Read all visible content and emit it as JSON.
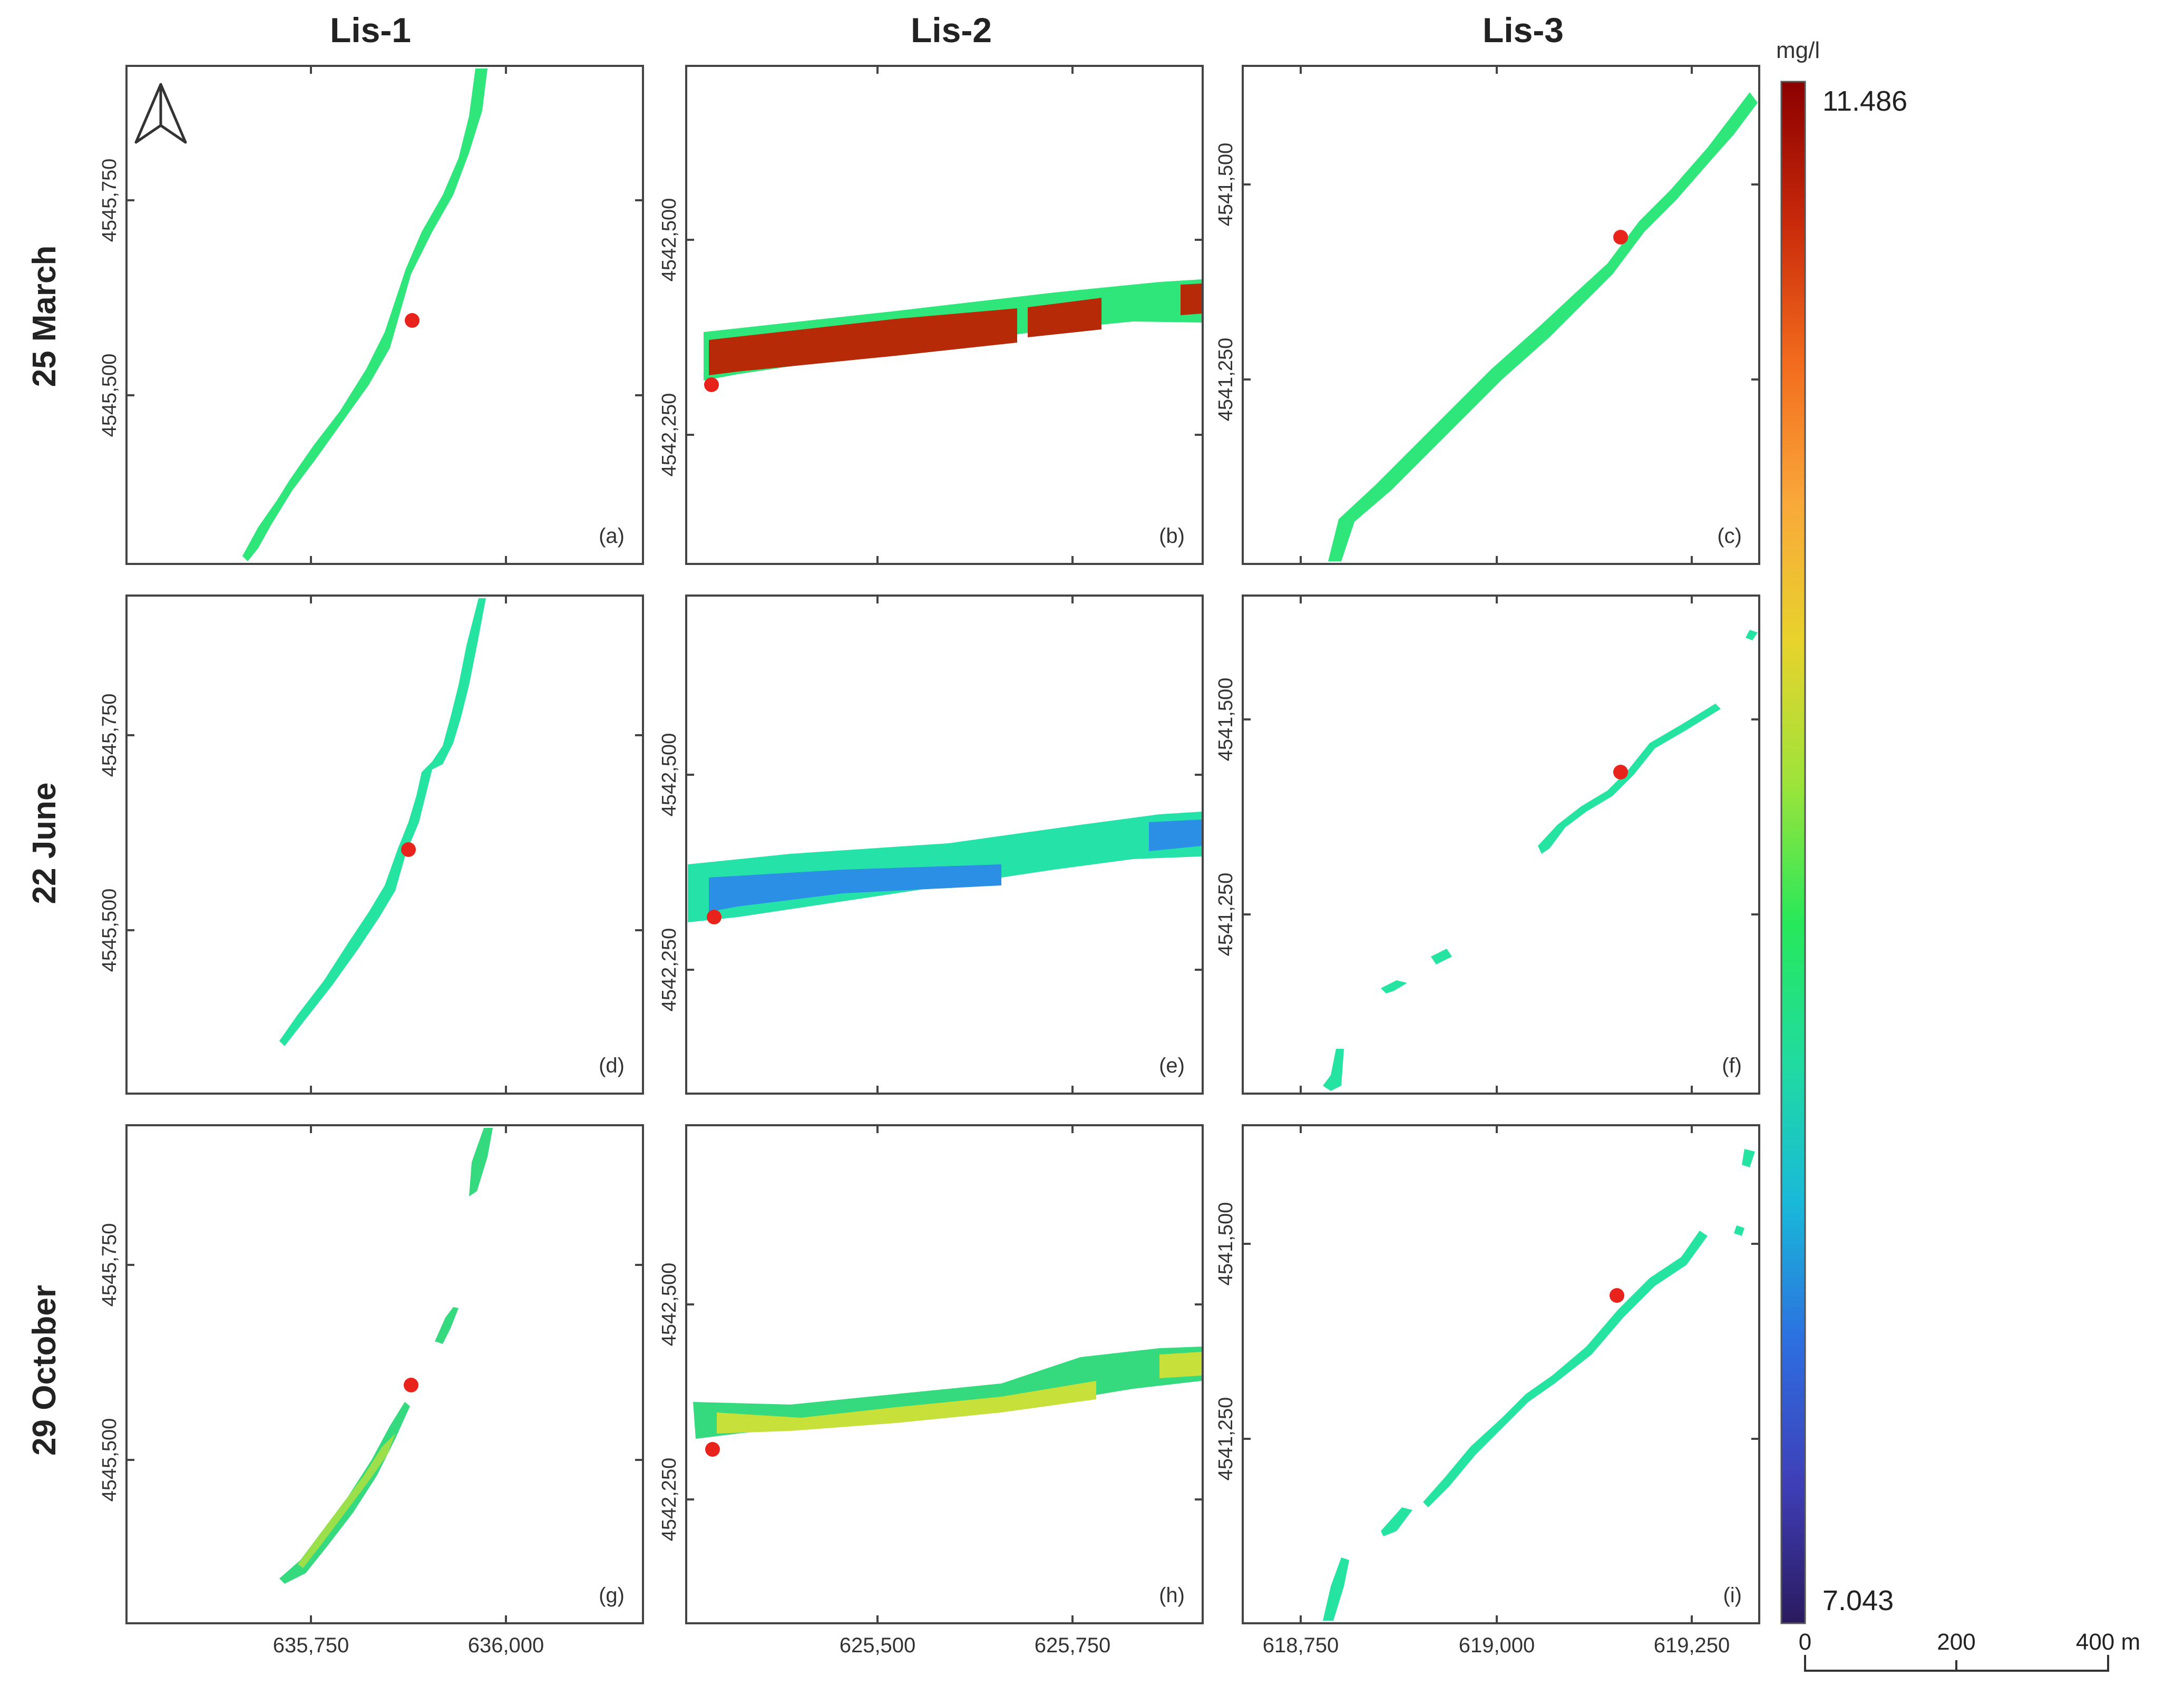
{
  "columns": [
    {
      "label": "Lis-1"
    },
    {
      "label": "Lis-2"
    },
    {
      "label": "Lis-3"
    }
  ],
  "rows": [
    {
      "label": "25 March"
    },
    {
      "label": "22 June"
    },
    {
      "label": "29 October"
    }
  ],
  "panels": [
    {
      "id": "a",
      "label": "(a)",
      "site": "Lis-1",
      "date": "25 March",
      "water_color": "#2ee67a",
      "bg_color": "#2ee67a"
    },
    {
      "id": "b",
      "label": "(b)",
      "site": "Lis-2",
      "date": "25 March",
      "water_color": "#b62a08",
      "bg_color": "#2ee67a"
    },
    {
      "id": "c",
      "label": "(c)",
      "site": "Lis-3",
      "date": "25 March",
      "water_color": "#2ee67a",
      "bg_color": "#2ee67a"
    },
    {
      "id": "d",
      "label": "(d)",
      "site": "Lis-1",
      "date": "22 June",
      "water_color": "#25e3a0",
      "bg_color": "#25e3a0"
    },
    {
      "id": "e",
      "label": "(e)",
      "site": "Lis-2",
      "date": "22 June",
      "water_color": "#2c8fe6",
      "bg_color": "#25e3a8"
    },
    {
      "id": "f",
      "label": "(f)",
      "site": "Lis-3",
      "date": "22 June",
      "water_color": "#25e3a0",
      "bg_color": "#25e3a0"
    },
    {
      "id": "g",
      "label": "(g)",
      "site": "Lis-1",
      "date": "29 October",
      "water_color": "#9be04a",
      "bg_color": "#35d97e"
    },
    {
      "id": "h",
      "label": "(h)",
      "site": "Lis-2",
      "date": "29 October",
      "water_color": "#c8e03a",
      "bg_color": "#35d97e"
    },
    {
      "id": "i",
      "label": "(i)",
      "site": "Lis-3",
      "date": "29 October",
      "water_color": "#25e3a0",
      "bg_color": "#25e3a0"
    }
  ],
  "axes": {
    "lis1": {
      "x_ticks": [
        "635,750",
        "636,000"
      ],
      "y_ticks": [
        "4545,750",
        "4545,500"
      ]
    },
    "lis2": {
      "x_ticks": [
        "625,500",
        "625,750"
      ],
      "y_ticks": [
        "4542,500",
        "4542,250"
      ]
    },
    "lis3": {
      "x_ticks": [
        "618,750",
        "619,000",
        "619,250"
      ],
      "y_ticks": [
        "4541,500",
        "4541,250"
      ]
    }
  },
  "colorbar": {
    "unit": "mg/l",
    "max": 11.486,
    "min": 7.043,
    "max_label": "11.486",
    "min_label": "7.043",
    "colors": [
      "#8b0000",
      "#c8290a",
      "#f26b1d",
      "#f9a83a",
      "#e7d32c",
      "#9ee33a",
      "#27e85a",
      "#20dba0",
      "#19b9d9",
      "#2d6ee0",
      "#3f3fb8",
      "#2a1a5e"
    ]
  },
  "scalebar": {
    "labels": [
      "0",
      "200",
      "400 m"
    ]
  },
  "north_arrow": {
    "icon": "north-arrow-icon"
  },
  "sampling_point": {
    "color": "#e8231c"
  }
}
